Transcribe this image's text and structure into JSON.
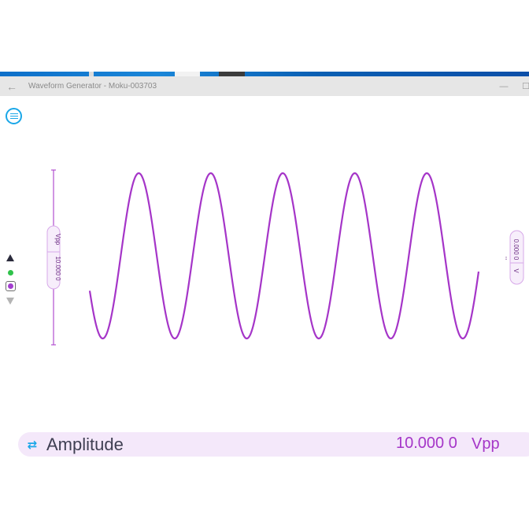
{
  "window": {
    "title": "Waveform Generator - Moku-003703",
    "back_icon": "←",
    "minimize_icon": "—",
    "maximize_icon": "☐"
  },
  "toolbar": {
    "menu_icon": "menu-icon"
  },
  "left_tab": {
    "value": "10.000 0",
    "unit": "Vpp"
  },
  "right_tab": {
    "value": "0.000 0",
    "unit": "V",
    "marker": "↕"
  },
  "side_tools": {
    "up_icon": "triangle-up-icon",
    "channel1_icon": "green-dot-icon",
    "channel2_icon": "purple-dot-icon",
    "down_icon": "triangle-down-icon"
  },
  "param": {
    "icon": "⇄",
    "name": "Amplitude",
    "value": "10.000 0",
    "unit": "Vpp"
  },
  "waveform": {
    "color": "#a535c8",
    "amplitude_vpp": 10.0,
    "cycles_visible": 5.4,
    "start_phase_deg": 205
  },
  "colors": {
    "accent": "#1aa7e8",
    "waveform": "#a535c8",
    "bar_bg": "#f4e8fa"
  }
}
